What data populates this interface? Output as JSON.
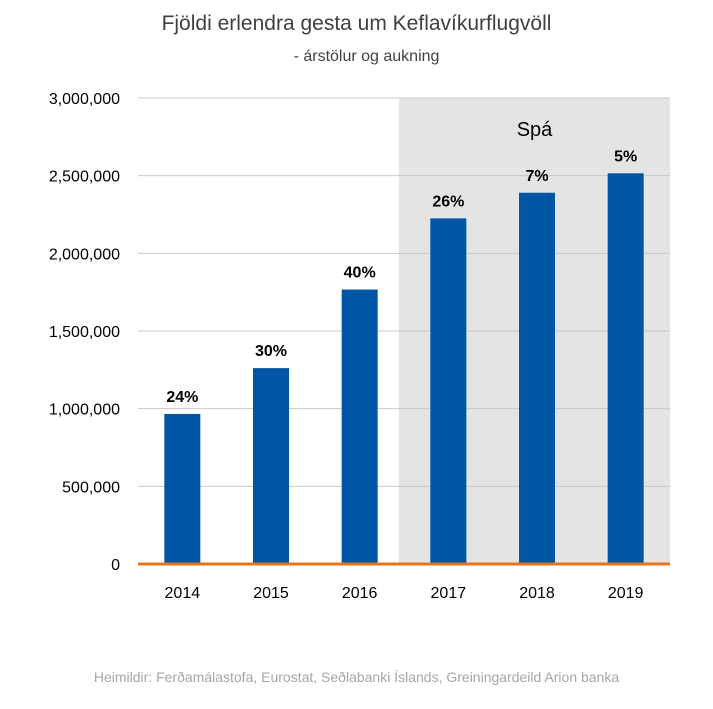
{
  "title": "Fjöldi erlendra gesta um Keflavíkurflugvöll",
  "subtitle": "- árstölur og aukning",
  "source": "Heimildir: Ferðamálastofa, Eurostat, Seðlabanki Íslands, Greiningardeild Arion banka",
  "colors": {
    "bar": "#0055a5",
    "forecast_band": "#e4e4e4",
    "baseline": "#e8731b",
    "gridline": "#c9c9c9",
    "text": "#000000"
  },
  "chart_data": {
    "type": "bar",
    "categories": [
      "2014",
      "2015",
      "2016",
      "2017",
      "2018",
      "2019"
    ],
    "values": [
      966000,
      1261000,
      1767000,
      2225000,
      2390000,
      2515000
    ],
    "data_labels": [
      "24%",
      "30%",
      "40%",
      "26%",
      "7%",
      "5%"
    ],
    "ylim": [
      0,
      3000000
    ],
    "yticks": [
      0,
      500000,
      1000000,
      1500000,
      2000000,
      2500000,
      3000000
    ],
    "ytick_labels": [
      "0",
      "500,000",
      "1,000,000",
      "1,500,000",
      "2,000,000",
      "2,500,000",
      "3,000,000"
    ],
    "forecast_start_category": "2017",
    "forecast_label": "Spá",
    "grid": true,
    "legend": "none"
  }
}
